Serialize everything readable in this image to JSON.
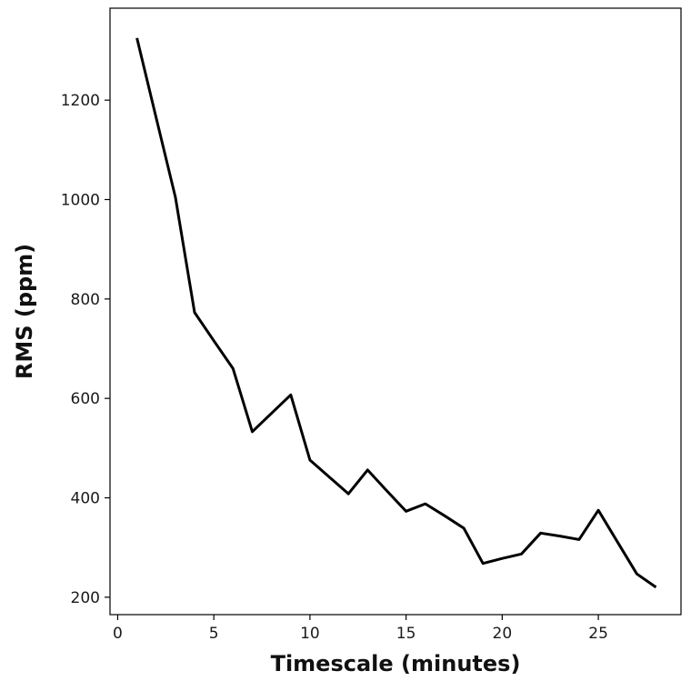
{
  "chart_data": {
    "type": "line",
    "title": "",
    "xlabel": "Timescale (minutes)",
    "ylabel": "RMS (ppm)",
    "xlim": [
      -0.4,
      29.3
    ],
    "ylim": [
      165,
      1385
    ],
    "x_ticks": [
      0,
      5,
      10,
      15,
      20,
      25
    ],
    "y_ticks": [
      200,
      400,
      600,
      800,
      1000,
      1200
    ],
    "grid": false,
    "legend": "none",
    "series": [
      {
        "color": "#000000",
        "x": [
          1,
          2,
          3,
          4,
          5,
          6,
          7,
          8,
          9,
          10,
          11,
          12,
          13,
          14,
          15,
          16,
          17,
          18,
          19,
          20,
          21,
          22,
          23,
          24,
          25,
          26,
          27,
          28
        ],
        "y": [
          1325,
          1165,
          1005,
          773,
          716,
          660,
          533,
          570,
          607,
          476,
          442,
          408,
          456,
          414,
          373,
          388,
          364,
          339,
          268,
          278,
          287,
          329,
          323,
          316,
          375,
          311,
          247,
          220
        ]
      }
    ]
  }
}
